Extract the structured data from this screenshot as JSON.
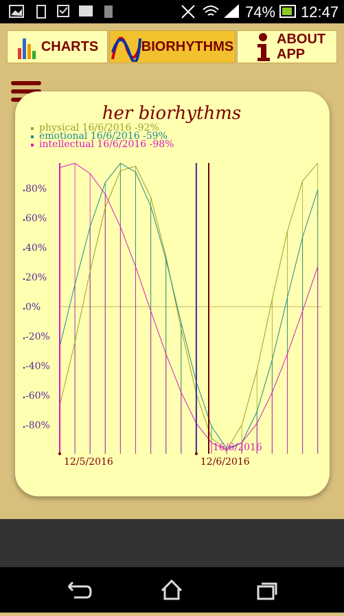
{
  "status_bar": {
    "battery": "74%",
    "time": "12:47"
  },
  "tabs": [
    "CHARTS",
    "BIORHYTHMS",
    "ABOUT APP"
  ],
  "chart_data": {
    "type": "line",
    "title": "her biorhythms",
    "categories": [
      "12/5/2016",
      null,
      null,
      null,
      null,
      null,
      null,
      null,
      null,
      "12/6/2016",
      null,
      null,
      null,
      null,
      null,
      null,
      null,
      null
    ],
    "series": [
      {
        "name": "physical 16/6/2016 -92%",
        "color": "#9aa02a",
        "values": [
          -67,
          -24,
          24,
          67,
          92,
          95,
          74,
          34,
          -15,
          -59,
          -89,
          -97,
          -80,
          -43,
          5,
          51,
          85,
          97
        ]
      },
      {
        "name": "emotional 16/6/2016 -59%",
        "color": "#1f8a8c",
        "values": [
          -27,
          15,
          54,
          84,
          97,
          91,
          68,
          32,
          -11,
          -51,
          -81,
          -96,
          -92,
          -71,
          -36,
          6,
          47,
          79
        ]
      },
      {
        "name": "intellectual 16/6/2016 -98%",
        "color": "#d21ec3",
        "values": [
          94,
          97,
          90,
          76,
          54,
          27,
          -3,
          -32,
          -58,
          -79,
          -92,
          -97,
          -92,
          -79,
          -58,
          -32,
          -3,
          27
        ]
      }
    ],
    "annotation": "16/6/2016",
    "ylim": [
      -100,
      100
    ],
    "yticks": [
      {
        "value": -80,
        "label": "-80%"
      },
      {
        "value": -60,
        "label": "-60%"
      },
      {
        "value": -40,
        "label": "-40%"
      },
      {
        "value": -20,
        "label": "-20%"
      },
      {
        "value": 0,
        "label": "0%"
      },
      {
        "value": 20,
        "label": "20%"
      },
      {
        "value": 40,
        "label": "40%"
      },
      {
        "value": 60,
        "label": "60%"
      },
      {
        "value": 80,
        "label": "80%"
      }
    ]
  }
}
